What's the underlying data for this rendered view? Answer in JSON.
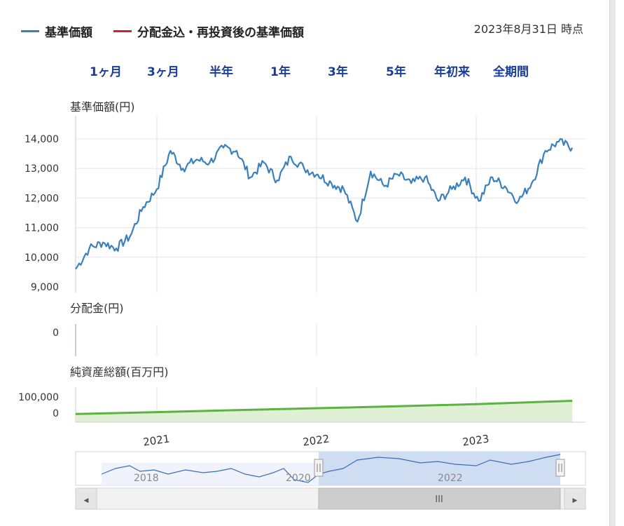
{
  "legend": {
    "items": [
      {
        "label": "基準価額",
        "color": "#3a80bd"
      },
      {
        "label": "分配金込・再投資後の基準価額",
        "color": "#c62828"
      }
    ]
  },
  "as_of": "2023年8月31日 時点",
  "range_buttons": [
    "1ヶ月",
    "3ヶ月",
    "半年",
    "1年",
    "3年",
    "5年",
    "年初来",
    "全期間"
  ],
  "colors": {
    "nav_line": "#3a80bd",
    "asset_line": "#5cb341",
    "asset_fill": "#dff0d4",
    "range_link": "#1a3d99"
  },
  "chart_data": [
    {
      "type": "line",
      "title": "基準価額(円)",
      "ylim": [
        9000,
        14500
      ],
      "yticks": [
        "14,000",
        "13,000",
        "12,000",
        "11,000",
        "10,000",
        "9,000"
      ],
      "xticks": [
        "2021",
        "2022",
        "2023"
      ],
      "series": [
        {
          "name": "基準価額",
          "x": [
            "2020-07",
            "2020-08",
            "2020-09",
            "2020-10",
            "2020-11",
            "2020-12",
            "2021-01",
            "2021-02",
            "2021-03",
            "2021-04",
            "2021-05",
            "2021-06",
            "2021-07",
            "2021-08",
            "2021-09",
            "2021-10",
            "2021-11",
            "2021-12",
            "2022-01",
            "2022-02",
            "2022-03",
            "2022-04",
            "2022-05",
            "2022-06",
            "2022-07",
            "2022-08",
            "2022-09",
            "2022-10",
            "2022-11",
            "2022-12",
            "2023-01",
            "2023-02",
            "2023-03",
            "2023-04",
            "2023-05",
            "2023-06",
            "2023-07",
            "2023-08"
          ],
          "values": [
            9600,
            10300,
            10500,
            10300,
            10700,
            11700,
            12300,
            13600,
            13000,
            13300,
            13200,
            13700,
            13600,
            12700,
            13200,
            12600,
            13400,
            13000,
            12800,
            12500,
            12300,
            11200,
            12900,
            12400,
            12800,
            12500,
            12700,
            11900,
            12300,
            12700,
            11900,
            12700,
            12400,
            11900,
            12500,
            13600,
            13900,
            13700
          ]
        }
      ]
    },
    {
      "type": "line",
      "title": "分配金(円)",
      "yticks": [
        "0"
      ],
      "xticks": [
        "2021",
        "2022",
        "2023"
      ],
      "series": [
        {
          "x": [
            "2020-07",
            "2023-08"
          ],
          "values": [
            0,
            0
          ]
        }
      ]
    },
    {
      "type": "area",
      "title": "純資産総額(百万円)",
      "yticks": [
        "100,000",
        "0"
      ],
      "xticks": [
        "2021",
        "2022",
        "2023"
      ],
      "series": [
        {
          "x": [
            "2020-07",
            "2021-01",
            "2021-07",
            "2022-01",
            "2022-07",
            "2023-01",
            "2023-08"
          ],
          "values": [
            16000,
            28000,
            40000,
            52000,
            64000,
            78000,
            98000
          ]
        }
      ]
    }
  ],
  "navigator": {
    "year_labels": [
      "2018",
      "2020",
      "2022"
    ],
    "handle_label": "III",
    "left_arrow": "◀",
    "right_arrow": "▶"
  }
}
